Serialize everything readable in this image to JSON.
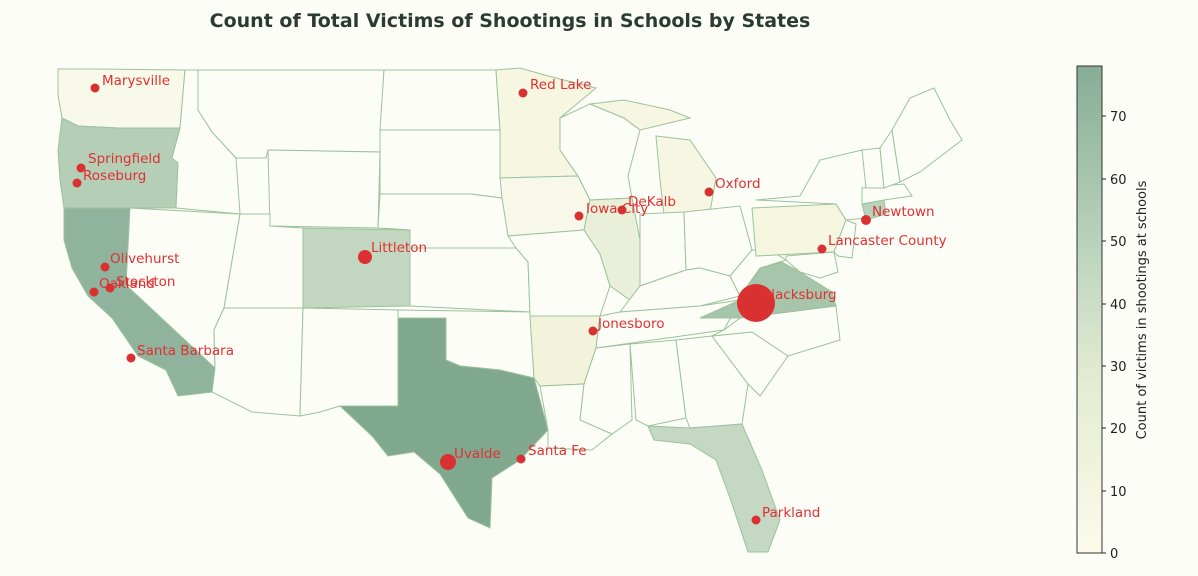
{
  "title": "Count of Total Victims of Shootings in Schools by States",
  "colorbar": {
    "label": "Count of victims in shootings at schools",
    "ticks": [
      0,
      10,
      20,
      30,
      40,
      50,
      60,
      70
    ],
    "min": 0,
    "max": 78,
    "color_low": "#fcfbea",
    "color_mid": "#c5d9c1",
    "color_high": "#87ad96"
  },
  "colors": {
    "marker": "#d93131",
    "label": "#e03030",
    "border": "#9bc29b",
    "nodata": "#fdfdf8"
  },
  "chart_data": {
    "type": "choropleth-map",
    "title": "Count of Total Victims of Shootings in Schools by States",
    "colorbar_label": "Count of victims in shootings at schools",
    "state_values": [
      {
        "state": "Washington",
        "value": 5
      },
      {
        "state": "Oregon",
        "value": 35
      },
      {
        "state": "California",
        "value": 60
      },
      {
        "state": "Minnesota",
        "value": 10
      },
      {
        "state": "Michigan",
        "value": 6
      },
      {
        "state": "Iowa",
        "value": 1
      },
      {
        "state": "Illinois",
        "value": 22
      },
      {
        "state": "Colorado",
        "value": 30
      },
      {
        "state": "Texas",
        "value": 70
      },
      {
        "state": "Arkansas",
        "value": 11
      },
      {
        "state": "Pennsylvania",
        "value": 8
      },
      {
        "state": "Virginia",
        "value": 49
      },
      {
        "state": "Florida",
        "value": 34
      },
      {
        "state": "Connecticut",
        "value": 28
      },
      {
        "state": "Wisconsin",
        "value": 0
      }
    ],
    "cities": [
      {
        "name": "Marysville",
        "lon": -122.18,
        "lat": 48.05,
        "value": 6
      },
      {
        "name": "Springfield",
        "lon": -123.02,
        "lat": 44.05,
        "value": 6
      },
      {
        "name": "Roseburg",
        "lon": -123.34,
        "lat": 43.22,
        "value": 6
      },
      {
        "name": "Olivehurst",
        "lon": -121.55,
        "lat": 39.09,
        "value": 5
      },
      {
        "name": "Stockton",
        "lon": -121.29,
        "lat": 37.96,
        "value": 6
      },
      {
        "name": "Oakland",
        "lon": -122.27,
        "lat": 37.8,
        "value": 6
      },
      {
        "name": "Santa Barbara",
        "lon": -119.7,
        "lat": 34.42,
        "value": 6
      },
      {
        "name": "Littleton",
        "lon": -105.02,
        "lat": 39.61,
        "value": 13
      },
      {
        "name": "Red Lake",
        "lon": -95.02,
        "lat": 47.88,
        "value": 6
      },
      {
        "name": "Iowa City",
        "lon": -91.53,
        "lat": 41.66,
        "value": 5
      },
      {
        "name": "DeKalb",
        "lon": -88.75,
        "lat": 41.93,
        "value": 6
      },
      {
        "name": "Oxford",
        "lon": -83.26,
        "lat": 42.82,
        "value": 6
      },
      {
        "name": "Jonesboro",
        "lon": -90.7,
        "lat": 35.84,
        "value": 5
      },
      {
        "name": "Blacksburg",
        "lon": -80.41,
        "lat": 37.23,
        "value": 49
      },
      {
        "name": "Lancaster County",
        "lon": -76.3,
        "lat": 40.04,
        "value": 5
      },
      {
        "name": "Newtown",
        "lon": -73.3,
        "lat": 41.41,
        "value": 8
      },
      {
        "name": "Uvalde",
        "lon": -99.79,
        "lat": 29.21,
        "value": 14
      },
      {
        "name": "Santa Fe",
        "lon": -95.18,
        "lat": 29.38,
        "value": 5
      },
      {
        "name": "Parkland",
        "lon": -80.24,
        "lat": 26.31,
        "value": 6
      }
    ]
  }
}
